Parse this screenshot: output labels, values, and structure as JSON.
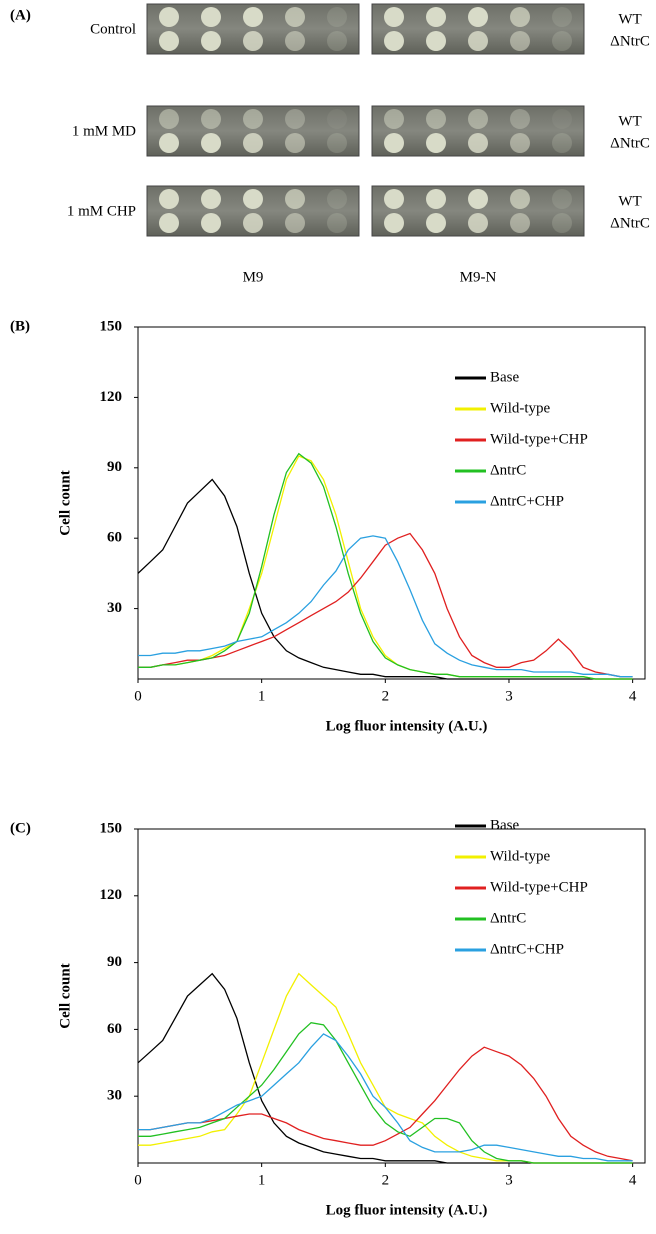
{
  "panel_a": {
    "label": "(A)",
    "conditions": [
      "Control",
      "1 mM MD",
      "1 mM CHP"
    ],
    "strains": [
      "WT",
      "ΔNtrC"
    ],
    "media": [
      "M9",
      "M9-N"
    ]
  },
  "chart_data": [
    {
      "type": "line",
      "panel_label": "(B)",
      "xlabel": "Log fluor intensity (A.U.)",
      "ylabel": "Cell count",
      "xlim": [
        0,
        4.1
      ],
      "ylim": [
        0,
        150
      ],
      "xticks": [
        0,
        1,
        2,
        3,
        4
      ],
      "yticks": [
        30,
        60,
        90,
        120,
        150
      ],
      "x": [
        0,
        0.1,
        0.2,
        0.3,
        0.4,
        0.5,
        0.6,
        0.7,
        0.8,
        0.9,
        1,
        1.1,
        1.2,
        1.3,
        1.4,
        1.5,
        1.6,
        1.7,
        1.8,
        1.9,
        2,
        2.1,
        2.2,
        2.3,
        2.4,
        2.5,
        2.6,
        2.7,
        2.8,
        2.9,
        3,
        3.1,
        3.2,
        3.3,
        3.4,
        3.5,
        3.6,
        3.7,
        3.8,
        3.9,
        4
      ],
      "series": [
        {
          "name": "Base",
          "color": "#000000",
          "values": [
            45,
            50,
            55,
            65,
            75,
            80,
            85,
            78,
            65,
            45,
            28,
            18,
            12,
            9,
            7,
            5,
            4,
            3,
            2,
            2,
            1,
            1,
            1,
            1,
            1,
            0,
            0,
            0,
            0,
            0,
            0,
            0,
            0,
            0,
            0,
            0,
            0,
            0,
            0,
            0,
            0
          ]
        },
        {
          "name": "Wild-type",
          "color": "#f2f000",
          "values": [
            5,
            5,
            6,
            6,
            7,
            8,
            10,
            13,
            16,
            30,
            45,
            65,
            85,
            95,
            93,
            85,
            70,
            50,
            30,
            18,
            10,
            6,
            4,
            3,
            2,
            2,
            1,
            1,
            1,
            1,
            1,
            1,
            1,
            1,
            1,
            1,
            1,
            0,
            0,
            0,
            0
          ]
        },
        {
          "name": "Wild-type+CHP",
          "color": "#e02020",
          "values": [
            5,
            5,
            6,
            7,
            8,
            8,
            9,
            10,
            12,
            14,
            16,
            18,
            21,
            24,
            27,
            30,
            33,
            37,
            43,
            50,
            57,
            60,
            62,
            55,
            45,
            30,
            18,
            10,
            7,
            5,
            5,
            7,
            8,
            12,
            17,
            12,
            5,
            3,
            2,
            1,
            1
          ]
        },
        {
          "name": "ΔntrC",
          "color": "#22c022",
          "values": [
            5,
            5,
            6,
            6,
            7,
            8,
            9,
            12,
            16,
            28,
            48,
            70,
            88,
            96,
            92,
            82,
            65,
            45,
            28,
            16,
            9,
            6,
            4,
            3,
            2,
            2,
            1,
            1,
            1,
            1,
            1,
            1,
            1,
            1,
            1,
            1,
            1,
            0,
            0,
            0,
            0
          ]
        },
        {
          "name": "ΔntrC+CHP",
          "color": "#2aa0e0",
          "values": [
            10,
            10,
            11,
            11,
            12,
            12,
            13,
            14,
            16,
            17,
            18,
            21,
            24,
            28,
            33,
            40,
            46,
            55,
            60,
            61,
            60,
            50,
            38,
            25,
            15,
            11,
            8,
            6,
            5,
            4,
            4,
            4,
            3,
            3,
            3,
            3,
            2,
            2,
            2,
            1,
            1
          ]
        }
      ]
    },
    {
      "type": "line",
      "panel_label": "(C)",
      "xlabel": "Log fluor intensity (A.U.)",
      "ylabel": "Cell count",
      "xlim": [
        0,
        4.1
      ],
      "ylim": [
        0,
        150
      ],
      "xticks": [
        0,
        1,
        2,
        3,
        4
      ],
      "yticks": [
        30,
        60,
        90,
        120,
        150
      ],
      "x": [
        0,
        0.1,
        0.2,
        0.3,
        0.4,
        0.5,
        0.6,
        0.7,
        0.8,
        0.9,
        1,
        1.1,
        1.2,
        1.3,
        1.4,
        1.5,
        1.6,
        1.7,
        1.8,
        1.9,
        2,
        2.1,
        2.2,
        2.3,
        2.4,
        2.5,
        2.6,
        2.7,
        2.8,
        2.9,
        3,
        3.1,
        3.2,
        3.3,
        3.4,
        3.5,
        3.6,
        3.7,
        3.8,
        3.9,
        4
      ],
      "series": [
        {
          "name": "Base",
          "color": "#000000",
          "values": [
            45,
            50,
            55,
            65,
            75,
            80,
            85,
            78,
            65,
            45,
            28,
            18,
            12,
            9,
            7,
            5,
            4,
            3,
            2,
            2,
            1,
            1,
            1,
            1,
            1,
            0,
            0,
            0,
            0,
            0,
            0,
            0,
            0,
            0,
            0,
            0,
            0,
            0,
            0,
            0,
            0
          ]
        },
        {
          "name": "Wild-type",
          "color": "#f2f000",
          "values": [
            8,
            8,
            9,
            10,
            11,
            12,
            14,
            15,
            22,
            30,
            45,
            60,
            75,
            85,
            80,
            75,
            70,
            58,
            45,
            35,
            25,
            22,
            20,
            18,
            12,
            8,
            5,
            3,
            2,
            1,
            1,
            1,
            0,
            0,
            0,
            0,
            0,
            0,
            0,
            0,
            0
          ]
        },
        {
          "name": "Wild-type+CHP",
          "color": "#e02020",
          "values": [
            15,
            15,
            16,
            17,
            18,
            18,
            19,
            20,
            21,
            22,
            22,
            20,
            18,
            15,
            13,
            11,
            10,
            9,
            8,
            8,
            10,
            13,
            16,
            22,
            28,
            35,
            42,
            48,
            52,
            50,
            48,
            44,
            38,
            30,
            20,
            12,
            8,
            5,
            3,
            2,
            1
          ]
        },
        {
          "name": "ΔntrC",
          "color": "#22c022",
          "values": [
            12,
            12,
            13,
            14,
            15,
            16,
            18,
            20,
            25,
            30,
            35,
            42,
            50,
            58,
            63,
            62,
            55,
            45,
            35,
            25,
            18,
            14,
            12,
            16,
            20,
            20,
            18,
            10,
            5,
            2,
            1,
            1,
            0,
            0,
            0,
            0,
            0,
            0,
            0,
            0,
            0
          ]
        },
        {
          "name": "ΔntrC+CHP",
          "color": "#2aa0e0",
          "values": [
            15,
            15,
            16,
            17,
            18,
            18,
            20,
            23,
            26,
            28,
            30,
            35,
            40,
            45,
            52,
            58,
            55,
            48,
            40,
            30,
            25,
            18,
            10,
            7,
            5,
            5,
            5,
            6,
            8,
            8,
            7,
            6,
            5,
            4,
            3,
            3,
            2,
            2,
            1,
            1,
            1
          ]
        }
      ]
    }
  ]
}
